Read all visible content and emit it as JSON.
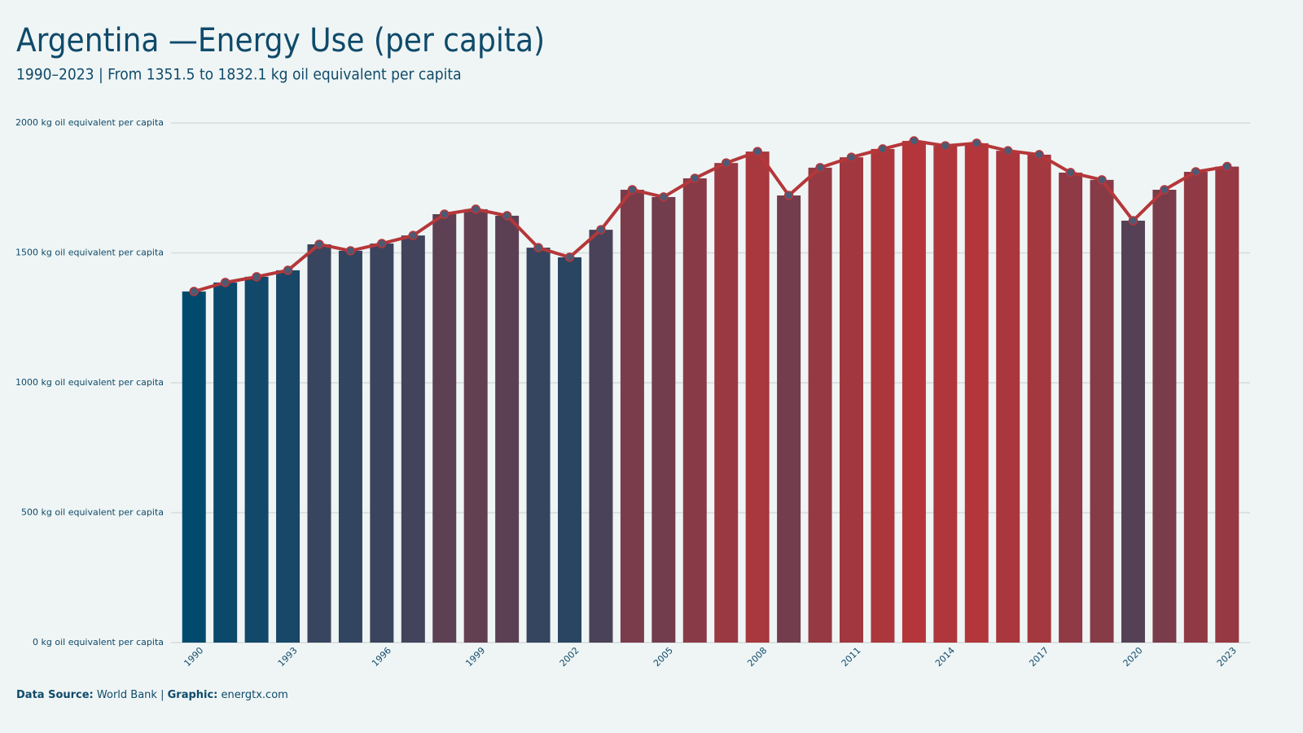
{
  "chart_data": {
    "type": "bar-line",
    "title": "Argentina —Energy Use (per capita)",
    "subtitle": "1990–2023 | From 1351.5 to 1832.1 kg oil equivalent per capita",
    "categories": [
      "1990",
      null,
      null,
      "1993",
      null,
      null,
      "1996",
      null,
      null,
      "1999",
      null,
      null,
      "2002",
      null,
      null,
      "2005",
      null,
      null,
      "2008",
      null,
      null,
      "2011",
      null,
      null,
      "2014",
      null,
      null,
      "2017",
      null,
      null,
      "2020",
      null,
      null,
      "2023"
    ],
    "values": [
      1351.5,
      1386,
      1408,
      1433,
      1533,
      1508,
      1536,
      1567,
      1649,
      1668,
      1643,
      1520,
      1483,
      1589,
      1743,
      1715,
      1787,
      1846,
      1890,
      1721,
      1828,
      1868,
      1900,
      1931,
      1912,
      1922,
      1893,
      1878,
      1809,
      1781,
      1624,
      1743,
      1812,
      1832.1
    ],
    "color_scale": [
      "#004a6e",
      "#b5363a"
    ],
    "line_color": "#b5373a",
    "marker_color": "#4d5a74",
    "ylim": [
      0,
      2000
    ],
    "yticks": [
      {
        "value": 0,
        "label": "0 kg oil equivalent per capita"
      },
      {
        "value": 500,
        "label": "500 kg oil equivalent per capita"
      },
      {
        "value": 1000,
        "label": "1000 kg oil equivalent per capita"
      },
      {
        "value": 1500,
        "label": "1500 kg oil equivalent per capita"
      },
      {
        "value": 2000,
        "label": "2000 kg oil equivalent per capita"
      }
    ],
    "grid": true,
    "source_label": "Data Source:",
    "source": "World Bank |",
    "graphic_label": "Graphic:",
    "graphic": "energtx.com"
  }
}
